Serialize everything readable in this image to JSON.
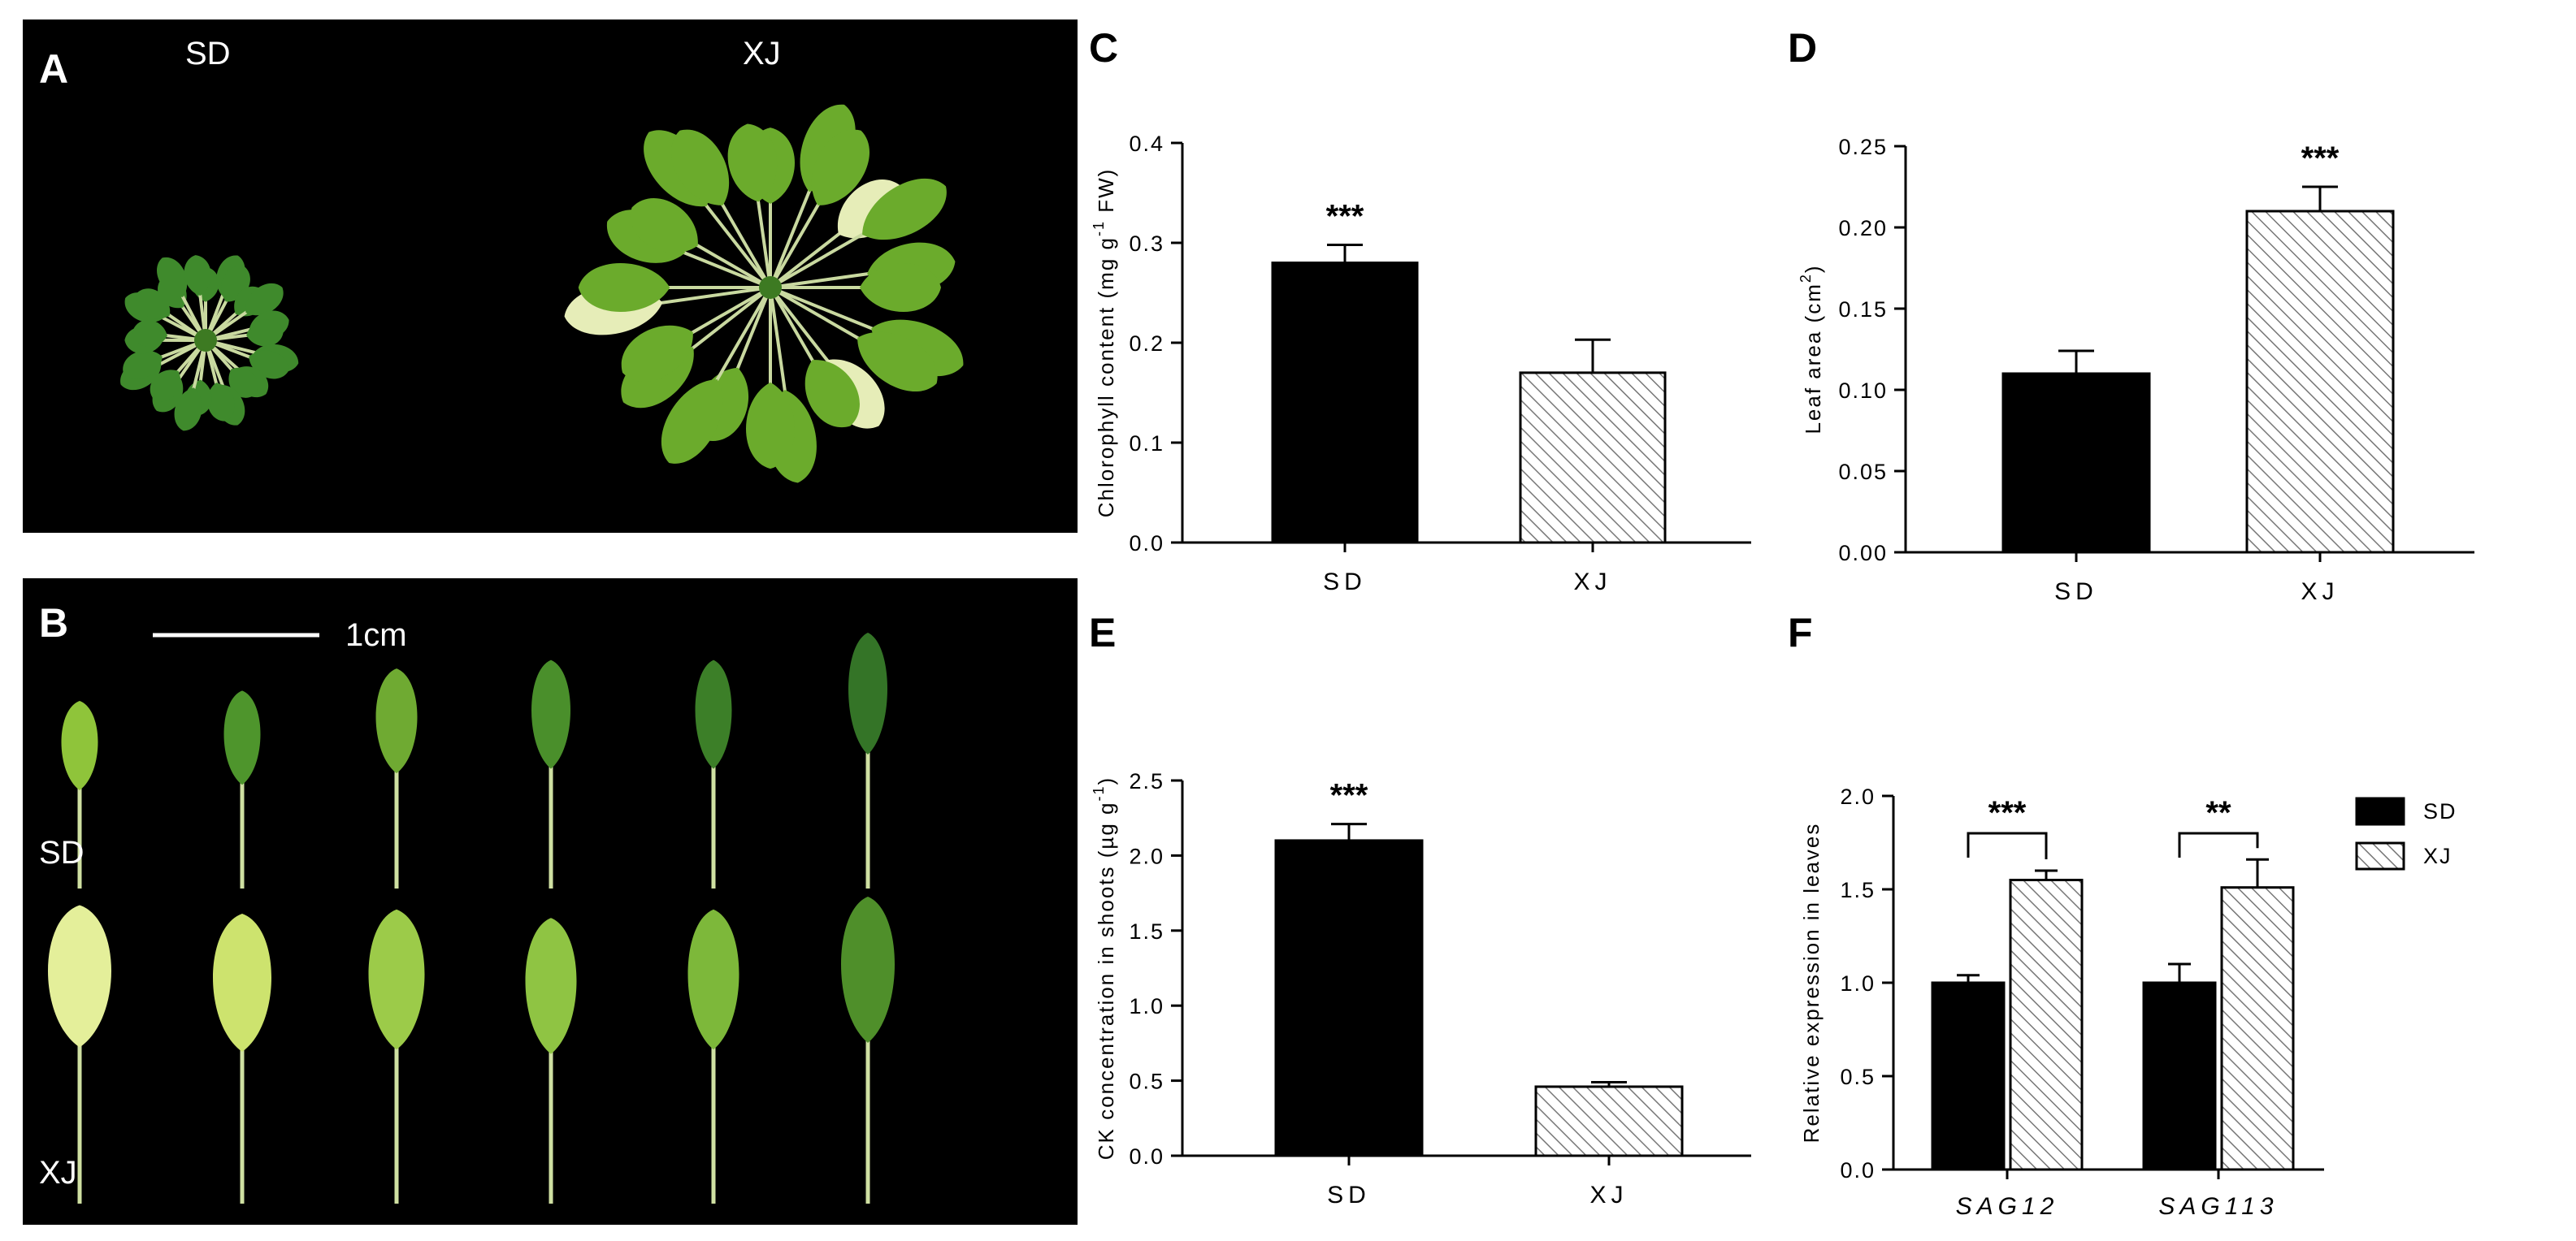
{
  "panels": {
    "A": {
      "letter": "A",
      "labels": [
        "SD",
        "XJ"
      ]
    },
    "B": {
      "letter": "B",
      "scale": "1cm",
      "rows": [
        "SD",
        "XJ"
      ]
    }
  },
  "colors": {
    "sd": "#000000",
    "xj_pattern": "diagonal-hatch",
    "background": "#ffffff",
    "photo_bg": "#000000",
    "leaf": "#4f8f2a"
  },
  "chart_data": [
    {
      "id": "C",
      "letter": "C",
      "type": "bar",
      "categories": [
        "SD",
        "XJ"
      ],
      "values": [
        0.28,
        0.17
      ],
      "errors": [
        0.018,
        0.033
      ],
      "ylabel_parts": [
        "Chlorophyll content (mg g",
        "-1",
        " FW)"
      ],
      "ylim": [
        0,
        0.4
      ],
      "yticks": [
        "0.0",
        "0.1",
        "0.2",
        "0.3",
        "0.4"
      ],
      "significance": [
        {
          "text": "***",
          "index": 0
        }
      ]
    },
    {
      "id": "D",
      "letter": "D",
      "type": "bar",
      "categories": [
        "SD",
        "XJ"
      ],
      "values": [
        0.11,
        0.21
      ],
      "errors": [
        0.014,
        0.015
      ],
      "ylabel_parts": [
        "Leaf area (cm",
        "2",
        ")"
      ],
      "ylim": [
        0,
        0.25
      ],
      "yticks": [
        "0.00",
        "0.05",
        "0.10",
        "0.15",
        "0.20",
        "0.25"
      ],
      "significance": [
        {
          "text": "***",
          "index": 1
        }
      ]
    },
    {
      "id": "E",
      "letter": "E",
      "type": "bar",
      "categories": [
        "SD",
        "XJ"
      ],
      "values": [
        2.1,
        0.46
      ],
      "errors": [
        0.11,
        0.03
      ],
      "ylabel_parts": [
        "CK concentration in shoots (µg g",
        "-1",
        ")"
      ],
      "ylim": [
        0,
        2.5
      ],
      "yticks": [
        "0.0",
        "0.5",
        "1.0",
        "1.5",
        "2.0",
        "2.5"
      ],
      "significance": [
        {
          "text": "***",
          "index": 0
        }
      ]
    },
    {
      "id": "F",
      "letter": "F",
      "type": "bar",
      "categories": [
        "SAG12",
        "SAG113"
      ],
      "series": [
        {
          "name": "SD",
          "values": [
            1.0,
            1.0
          ],
          "errors": [
            0.04,
            0.1
          ]
        },
        {
          "name": "XJ",
          "values": [
            1.55,
            1.51
          ],
          "errors": [
            0.05,
            0.15
          ]
        }
      ],
      "ylabel": "Relative expression in leaves",
      "ylim": [
        0,
        2.0
      ],
      "yticks": [
        "0.0",
        "0.5",
        "1.0",
        "1.5",
        "2.0"
      ],
      "significance": [
        {
          "text": "***",
          "group": 0
        },
        {
          "text": "**",
          "group": 1
        }
      ],
      "legend": "right"
    }
  ]
}
